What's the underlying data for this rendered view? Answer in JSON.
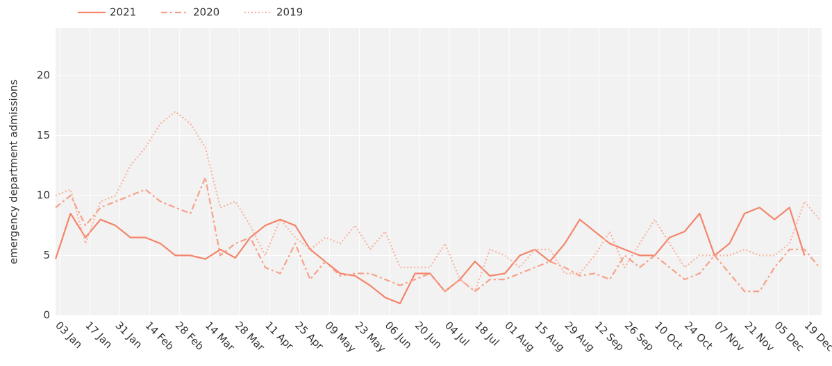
{
  "chart_data": {
    "type": "line",
    "y_label": "emergency department admissions",
    "x": [
      0,
      7,
      14,
      21,
      28,
      35,
      42,
      49,
      56,
      63,
      70,
      77,
      84,
      91,
      98,
      105,
      112,
      119,
      126,
      133,
      140,
      147,
      154,
      161,
      168,
      175,
      182,
      189,
      196,
      203,
      210,
      217,
      224,
      231,
      238,
      245,
      252,
      259,
      266,
      273,
      280,
      287,
      294,
      301,
      308,
      315,
      322,
      329,
      336,
      343,
      350,
      357
    ],
    "series": [
      {
        "name": "2021",
        "color": "#f4846a",
        "dash": "solid",
        "values": [
          4.7,
          8.5,
          6.5,
          8,
          7.5,
          6.5,
          6.5,
          6,
          5,
          5,
          4.7,
          5.5,
          4.8,
          6.5,
          7.5,
          8,
          7.5,
          5.5,
          4.5,
          3.5,
          3.3,
          2.5,
          1.5,
          1,
          3.5,
          3.5,
          2,
          3,
          4.5,
          3.3,
          3.5,
          5,
          5.5,
          4.5,
          6,
          8,
          7,
          6,
          5.5,
          5,
          5,
          6.5,
          7,
          8.5,
          5,
          6,
          8.5,
          9,
          8,
          9,
          5,
          null
        ]
      },
      {
        "name": "2020",
        "color": "#f7a087",
        "dash": "dashdot",
        "values": [
          9,
          10,
          7.5,
          9,
          9.5,
          10,
          10.5,
          9.5,
          9,
          8.5,
          11.5,
          5,
          6,
          6.5,
          4,
          3.5,
          6,
          3,
          4.5,
          3.3,
          3.5,
          3.5,
          3,
          2.5,
          3,
          3.5,
          2,
          3,
          2,
          3,
          3,
          3.5,
          4,
          4.5,
          4,
          3.3,
          3.5,
          3,
          5,
          4,
          5,
          4,
          3,
          3.5,
          5,
          3.5,
          2,
          2,
          4,
          5.5,
          5.5,
          4
        ]
      },
      {
        "name": "2019",
        "color": "#f9b29c",
        "dash": "dot",
        "values": [
          10,
          10.5,
          6,
          9.5,
          10,
          12.5,
          14,
          16,
          17,
          16,
          14,
          9,
          9.5,
          7.5,
          5,
          8,
          6.5,
          5.5,
          6.5,
          6,
          7.5,
          5.5,
          7,
          4,
          4,
          4,
          6,
          3,
          2,
          5.5,
          5,
          4,
          5.5,
          5.5,
          3.5,
          3.5,
          5,
          7,
          4,
          6,
          8,
          6,
          4,
          5,
          5,
          5,
          5.5,
          5,
          5,
          6,
          9.5,
          8
        ]
      }
    ],
    "xlim": [
      0,
      358
    ],
    "ylim": [
      0,
      24
    ],
    "yticks": [
      0,
      5,
      10,
      15,
      20
    ],
    "xticks": [
      {
        "value": 2,
        "label": "03 Jan"
      },
      {
        "value": 16,
        "label": "17 Jan"
      },
      {
        "value": 30,
        "label": "31 Jan"
      },
      {
        "value": 44,
        "label": "14 Feb"
      },
      {
        "value": 58,
        "label": "28 Feb"
      },
      {
        "value": 72,
        "label": "14 Mar"
      },
      {
        "value": 86,
        "label": "28 Mar"
      },
      {
        "value": 100,
        "label": "11 Apr"
      },
      {
        "value": 114,
        "label": "25 Apr"
      },
      {
        "value": 128,
        "label": "09 May"
      },
      {
        "value": 142,
        "label": "23 May"
      },
      {
        "value": 156,
        "label": "06 Jun"
      },
      {
        "value": 170,
        "label": "20 Jun"
      },
      {
        "value": 184,
        "label": "04 Jul"
      },
      {
        "value": 198,
        "label": "18 Jul"
      },
      {
        "value": 212,
        "label": "01 Aug"
      },
      {
        "value": 226,
        "label": "15 Aug"
      },
      {
        "value": 240,
        "label": "29 Aug"
      },
      {
        "value": 254,
        "label": "12 Sep"
      },
      {
        "value": 268,
        "label": "26 Sep"
      },
      {
        "value": 282,
        "label": "10 Oct"
      },
      {
        "value": 296,
        "label": "24 Oct"
      },
      {
        "value": 310,
        "label": "07 Nov"
      },
      {
        "value": 324,
        "label": "21 Nov"
      },
      {
        "value": 338,
        "label": "05 Dec"
      },
      {
        "value": 352,
        "label": "19 Dec"
      }
    ],
    "grid": true,
    "legend": "top-left"
  }
}
